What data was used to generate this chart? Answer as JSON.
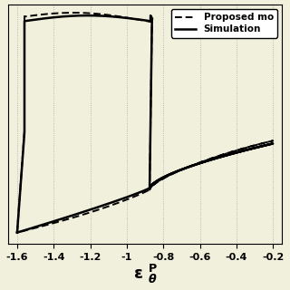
{
  "xlim": [
    -1.65,
    -0.15
  ],
  "ylim": [
    -1.0,
    1.15
  ],
  "xticks": [
    -1.6,
    -1.4,
    -1.2,
    -1.0,
    -0.8,
    -0.6,
    -0.4,
    -0.2
  ],
  "xtick_labels": [
    "-1.6",
    "-1.4",
    "-1.2",
    "-1",
    "-0.8",
    "-0.6",
    "-0.4",
    "-0.2"
  ],
  "yticks": [],
  "background_color": "#f0f0dc",
  "grid_color": "#aaaaaa",
  "line_color": "#000000",
  "legend_proposed": "Proposed mo",
  "legend_simulation": "Simulation",
  "tick_fontsize": 8.0,
  "xlabel_fontsize": 13,
  "legend_fontsize": 7.5
}
